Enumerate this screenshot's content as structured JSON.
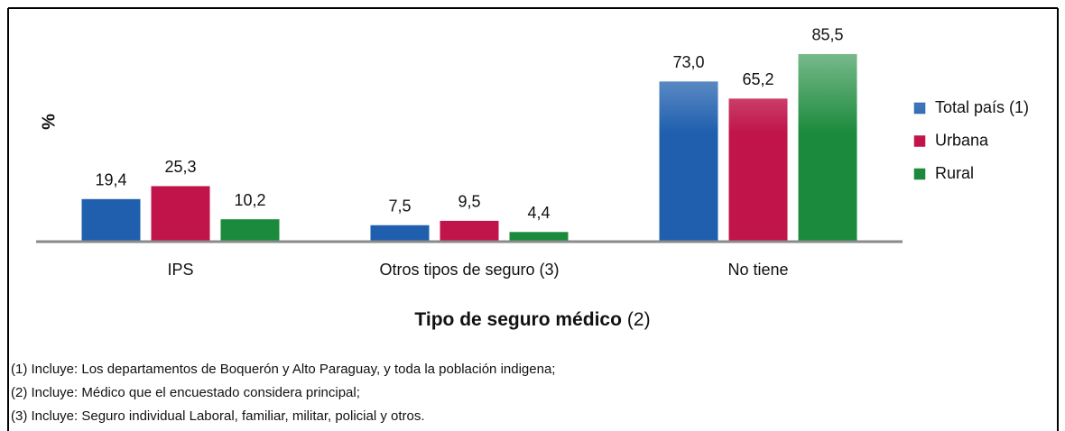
{
  "chart_data": {
    "type": "bar",
    "y_label": "%",
    "x_label": "Tipo de seguro médico",
    "x_label_note": "(2)",
    "categories": [
      "IPS",
      "Otros tipos de seguro (3)",
      "No tiene"
    ],
    "series": [
      {
        "name": "Total país (1)",
        "color": "#1f5fae",
        "values": [
          19.4,
          7.5,
          73.0
        ],
        "value_labels": [
          "19,4",
          "7,5",
          "73,0"
        ]
      },
      {
        "name": "Urbana",
        "color": "#c0144a",
        "values": [
          25.3,
          9.5,
          65.2
        ],
        "value_labels": [
          "25,3",
          "9,5",
          "65,2"
        ]
      },
      {
        "name": "Rural",
        "color": "#1c8a3c",
        "values": [
          10.2,
          4.4,
          85.5
        ],
        "value_labels": [
          "10,2",
          "4,4",
          "85,5"
        ]
      }
    ],
    "ylim": [
      0,
      90
    ],
    "legend": "right",
    "footnotes": [
      "(1) Incluye: Los departamentos de Boquerón y Alto Paraguay, y toda la población indigena;",
      "(2) Incluye: Médico que el encuestado considera principal;",
      "(3) Incluye: Seguro individual Laboral, familiar, militar, policial y otros."
    ]
  }
}
